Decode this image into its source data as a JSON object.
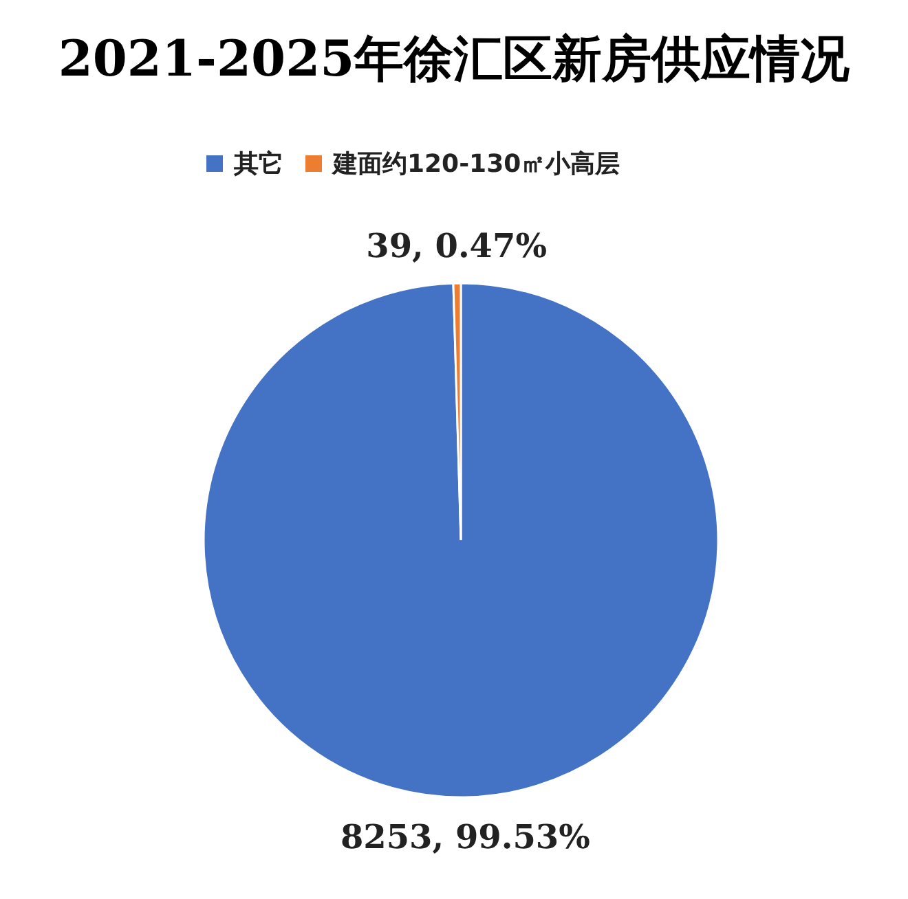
{
  "chart_data": {
    "type": "pie",
    "title": "2021-2025年徐汇区新房供应情况",
    "categories": [
      "其它",
      "建面约120-130㎡小高层"
    ],
    "values": [
      8253,
      39
    ],
    "colors": [
      "#4472c4",
      "#ed7d31"
    ],
    "value_labels": [
      "8253, 99.53%",
      "39, 0.47%"
    ],
    "legend": "top"
  }
}
